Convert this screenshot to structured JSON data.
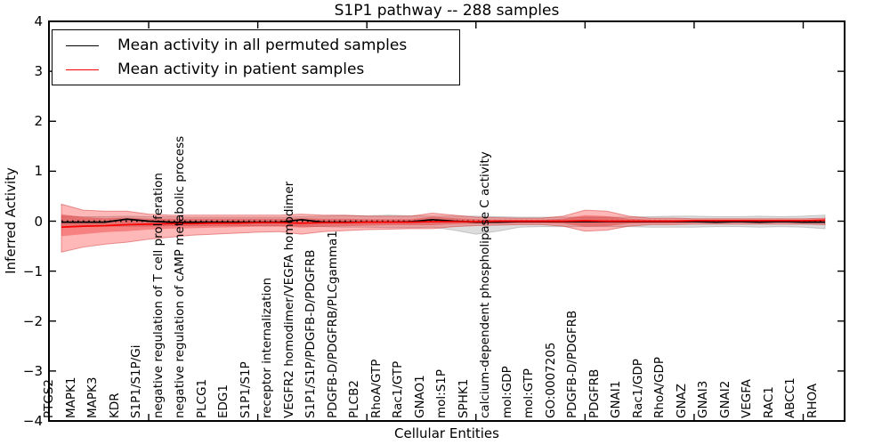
{
  "title": "S1P1 pathway -- 288 samples",
  "axes": {
    "xlabel": "Cellular Entities",
    "ylabel": "Inferred Activity"
  },
  "legend": {
    "items": [
      {
        "label": "Mean activity in all permuted samples",
        "color": "#000000"
      },
      {
        "label": "Mean activity in patient samples",
        "color": "#ff0000"
      }
    ]
  },
  "chart_data": {
    "type": "line",
    "title": "S1P1 pathway -- 288 samples",
    "xlabel": "Cellular Entities",
    "ylabel": "Inferred Activity",
    "ylim": [
      -4,
      4
    ],
    "grid": false,
    "legend_position": "upper left",
    "yticks": [
      {
        "v": 4,
        "label": "4"
      },
      {
        "v": 3,
        "label": "3"
      },
      {
        "v": 2,
        "label": "2"
      },
      {
        "v": 1,
        "label": "1"
      },
      {
        "v": 0,
        "label": "0"
      },
      {
        "v": -1,
        "label": "−1"
      },
      {
        "v": -2,
        "label": "−2"
      },
      {
        "v": -3,
        "label": "−3"
      },
      {
        "v": -4,
        "label": "−4"
      }
    ],
    "xtick_mark_indices": [
      4,
      9,
      14,
      19,
      24,
      29,
      34
    ],
    "categories": [
      "PTGS2",
      "MAPK1",
      "MAPK3",
      "KDR",
      "S1P1/S1P/Gi",
      "negative regulation of T cell proliferation",
      "negative regulation of cAMP metabolic process",
      "PLCG1",
      "EDG1",
      "S1P1/S1P",
      "receptor internalization",
      "VEGFR2 homodimer/VEGFA homodimer",
      "S1P1/S1P/PDGFB-D/PDGFRB",
      "PDGFB-D/PDGFRB/PLCgamma1",
      "PLCB2",
      "RhoA/GTP",
      "Rac1/GTP",
      "GNAO1",
      "mol:S1P",
      "SPHK1",
      "calcium-dependent phospholipase C activity",
      "mol:GDP",
      "mol:GTP",
      "GO:0007205",
      "PDGFB-D/PDGFRB",
      "PDGFRB",
      "GNAI1",
      "Rac1/GDP",
      "RhoA/GDP",
      "GNAZ",
      "GNAI3",
      "GNAI2",
      "VEGFA",
      "RAC1",
      "ABCC1",
      "RHOA"
    ],
    "refline": {
      "y": 0,
      "style": "dotted",
      "color": "#000000"
    },
    "series": [
      {
        "id": "mean-permuted-line",
        "name": "Mean activity in all permuted samples",
        "color": "#000000",
        "values": [
          -0.02,
          -0.02,
          -0.02,
          0.04,
          0.0,
          -0.02,
          -0.02,
          -0.02,
          -0.02,
          -0.02,
          -0.02,
          0.03,
          -0.02,
          -0.02,
          -0.02,
          -0.02,
          -0.01,
          0.03,
          0.0,
          -0.02,
          -0.02,
          -0.01,
          -0.01,
          -0.01,
          -0.01,
          -0.01,
          -0.01,
          -0.01,
          -0.01,
          -0.01,
          -0.02,
          -0.01,
          -0.02,
          -0.01,
          -0.02,
          -0.02
        ]
      },
      {
        "id": "mean-patient-line",
        "name": "Mean activity in patient samples",
        "color": "#ff0000",
        "values": [
          -0.12,
          -0.1,
          -0.09,
          -0.07,
          -0.06,
          -0.05,
          -0.05,
          -0.04,
          -0.04,
          -0.03,
          -0.03,
          -0.04,
          -0.03,
          -0.03,
          -0.02,
          -0.02,
          -0.02,
          -0.01,
          -0.01,
          -0.01,
          0.0,
          0.0,
          0.0,
          0.0,
          0.01,
          0.0,
          0.0,
          0.0,
          0.0,
          0.01,
          0.01,
          0.01,
          0.01,
          0.01,
          0.01,
          0.02
        ]
      }
    ],
    "bands": [
      {
        "name": "permuted-std-band",
        "color": "rgba(120,120,120,0.25)",
        "edge": "rgba(120,120,120,0.35)",
        "upper": [
          0.1,
          0.09,
          0.09,
          0.1,
          0.09,
          0.09,
          0.08,
          0.08,
          0.08,
          0.08,
          0.08,
          0.09,
          0.1,
          0.11,
          0.11,
          0.12,
          0.11,
          0.1,
          0.1,
          0.1,
          0.09,
          0.08,
          0.08,
          0.08,
          0.08,
          0.08,
          0.08,
          0.09,
          0.1,
          0.1,
          0.09,
          0.09,
          0.1,
          0.09,
          0.1,
          0.12
        ],
        "lower": [
          -0.12,
          -0.11,
          -0.1,
          -0.1,
          -0.1,
          -0.09,
          -0.09,
          -0.09,
          -0.09,
          -0.09,
          -0.09,
          -0.1,
          -0.11,
          -0.12,
          -0.12,
          -0.13,
          -0.13,
          -0.12,
          -0.18,
          -0.26,
          -0.2,
          -0.12,
          -0.11,
          -0.11,
          -0.11,
          -0.11,
          -0.11,
          -0.12,
          -0.12,
          -0.12,
          -0.11,
          -0.11,
          -0.12,
          -0.11,
          -0.12,
          -0.15
        ]
      },
      {
        "name": "patient-std-outer-band",
        "color": "rgba(255,0,0,0.28)",
        "edge": "rgba(205,40,40,0.45)",
        "upper": [
          0.34,
          0.22,
          0.2,
          0.2,
          0.14,
          0.12,
          0.12,
          0.12,
          0.12,
          0.12,
          0.12,
          0.14,
          0.12,
          0.12,
          0.1,
          0.1,
          0.1,
          0.16,
          0.12,
          0.08,
          0.07,
          0.06,
          0.06,
          0.1,
          0.22,
          0.2,
          0.1,
          0.06,
          0.06,
          0.05,
          0.05,
          0.05,
          0.05,
          0.05,
          0.05,
          0.06
        ],
        "lower": [
          -0.62,
          -0.52,
          -0.46,
          -0.42,
          -0.36,
          -0.32,
          -0.28,
          -0.26,
          -0.24,
          -0.22,
          -0.21,
          -0.26,
          -0.21,
          -0.19,
          -0.17,
          -0.16,
          -0.15,
          -0.15,
          -0.11,
          -0.09,
          -0.08,
          -0.07,
          -0.07,
          -0.1,
          -0.2,
          -0.18,
          -0.1,
          -0.07,
          -0.07,
          -0.06,
          -0.06,
          -0.06,
          -0.06,
          -0.06,
          -0.06,
          -0.07
        ]
      },
      {
        "name": "patient-std-inner-band",
        "color": "rgba(230,0,0,0.30)",
        "edge": "none",
        "upper": [
          0.14,
          0.08,
          0.06,
          0.07,
          0.05,
          0.05,
          0.05,
          0.05,
          0.05,
          0.05,
          0.05,
          0.06,
          0.05,
          0.05,
          0.04,
          0.04,
          0.04,
          0.09,
          0.06,
          0.04,
          0.03,
          0.03,
          0.03,
          0.05,
          0.12,
          0.1,
          0.05,
          0.03,
          0.03,
          0.03,
          0.03,
          0.03,
          0.03,
          0.03,
          0.03,
          0.03
        ],
        "lower": [
          -0.3,
          -0.26,
          -0.22,
          -0.2,
          -0.17,
          -0.15,
          -0.14,
          -0.13,
          -0.12,
          -0.11,
          -0.11,
          -0.13,
          -0.11,
          -0.1,
          -0.09,
          -0.08,
          -0.08,
          -0.08,
          -0.06,
          -0.05,
          -0.04,
          -0.04,
          -0.04,
          -0.05,
          -0.11,
          -0.1,
          -0.05,
          -0.04,
          -0.04,
          -0.03,
          -0.03,
          -0.03,
          -0.03,
          -0.03,
          -0.03,
          -0.03
        ]
      }
    ]
  }
}
